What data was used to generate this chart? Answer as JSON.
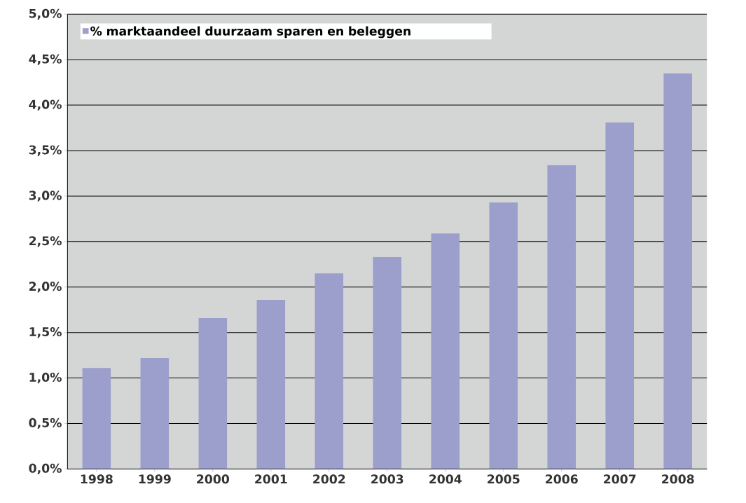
{
  "chart_data": {
    "type": "bar",
    "categories": [
      "1998",
      "1999",
      "2000",
      "2001",
      "2002",
      "2003",
      "2004",
      "2005",
      "2006",
      "2007",
      "2008"
    ],
    "series": [
      {
        "name": "% marktaandeel duurzaam sparen en beleggen",
        "color": "#9c9ecb",
        "values": [
          1.11,
          1.22,
          1.66,
          1.86,
          2.15,
          2.33,
          2.59,
          2.93,
          3.34,
          3.81,
          4.35
        ]
      }
    ],
    "ylim": [
      0,
      5
    ],
    "yticks": [
      {
        "value": 0,
        "label": "0,0%"
      },
      {
        "value": 0.5,
        "label": "0,5%"
      },
      {
        "value": 1,
        "label": "1,0%"
      },
      {
        "value": 1.5,
        "label": "1,5%"
      },
      {
        "value": 2,
        "label": "2,0%"
      },
      {
        "value": 2.5,
        "label": "2,5%"
      },
      {
        "value": 3,
        "label": "3,0%"
      },
      {
        "value": 3.5,
        "label": "3,5%"
      },
      {
        "value": 4,
        "label": "4,0%"
      },
      {
        "value": 4.5,
        "label": "4,5%"
      },
      {
        "value": 5,
        "label": "5,0%"
      }
    ],
    "grid": "y",
    "legend": "top left"
  }
}
